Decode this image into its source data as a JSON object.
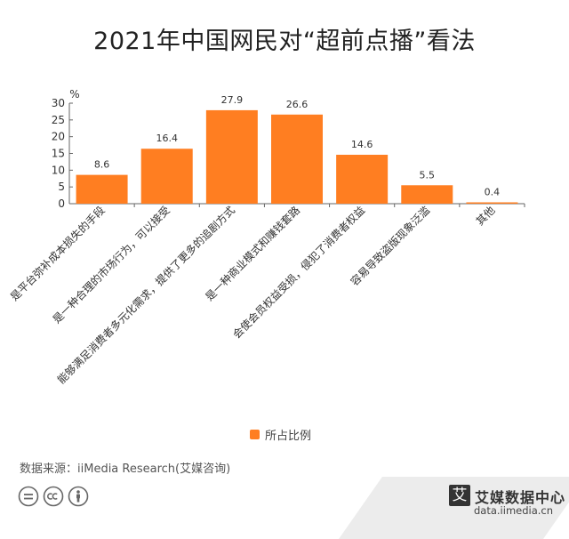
{
  "title": "2021年中国网民对“超前点播”看法",
  "chart_data": {
    "type": "bar",
    "title": "2021年中国网民对“超前点播”看法",
    "ylabel": "%",
    "xlabel": "",
    "ylim": [
      0,
      30
    ],
    "yticks": [
      0,
      5,
      10,
      15,
      20,
      25,
      30
    ],
    "categories": [
      "是平台弥补成本损失的手段",
      "是一种合理的市场行为，可以接受",
      "能够满足消费者多元化需求，提供了更多的追剧方式",
      "是一种商业模式和赚钱套路",
      "会使会员权益受损，侵犯了消费者权益",
      "容易导致盗版现象泛滥",
      "其他"
    ],
    "series": [
      {
        "name": "所占比例",
        "values": [
          8.6,
          16.4,
          27.9,
          26.6,
          14.6,
          5.5,
          0.4
        ]
      }
    ],
    "data_labels": [
      "8.6",
      "16.4",
      "27.9",
      "26.6",
      "14.6",
      "5.5",
      "0.4"
    ],
    "grid": false,
    "legend_position": "bottom",
    "bar_color": "#ff7e21"
  },
  "legend": {
    "label": "所占比例"
  },
  "source": "数据来源：iiMedia Research(艾媒咨询)",
  "brand": {
    "name": "艾媒数据中心",
    "url": "data.iimedia.cn",
    "logo_char": "艾"
  },
  "license_icons": [
    "equal-icon",
    "cc-icon",
    "person-icon"
  ]
}
